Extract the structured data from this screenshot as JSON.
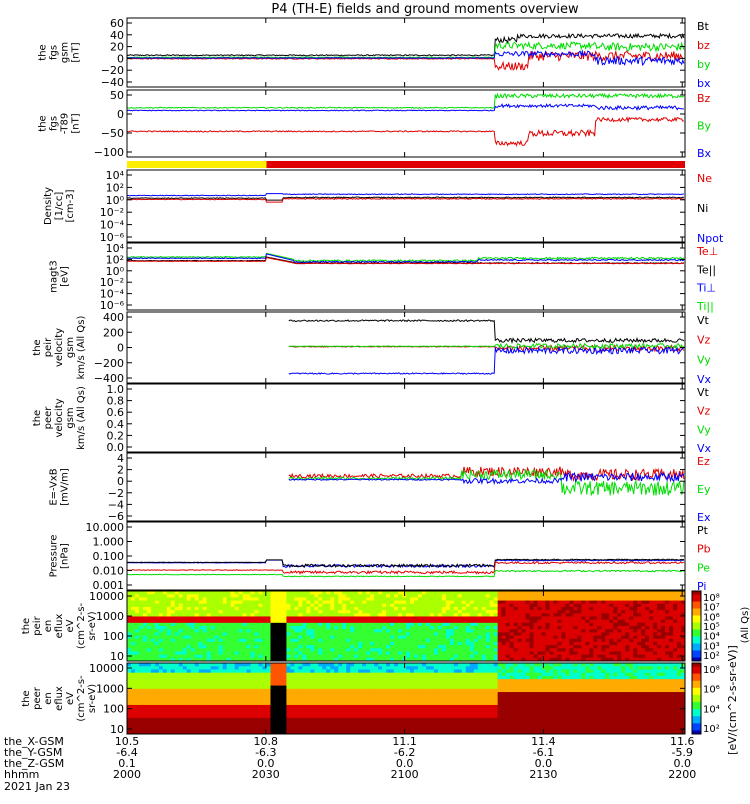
{
  "title": "P4 (TH-E) fields and ground moments overview",
  "colors": {
    "black": "#000000",
    "red": "#e00000",
    "green": "#00dd00",
    "blue": "#0000ff",
    "yellow": "#ffee00"
  },
  "x_axis": {
    "rows": [
      {
        "label": "the_X-GSM",
        "values": [
          "10.5",
          "10.8",
          "11.1",
          "11.4",
          "11.6"
        ]
      },
      {
        "label": "the_Y-GSM",
        "values": [
          "-6.4",
          "-6.3",
          "-6.2",
          "-6.1",
          "-5.9"
        ]
      },
      {
        "label": "the_Z-GSM",
        "values": [
          "0.1",
          "0.0",
          "0.0",
          "0.0",
          "0.0"
        ]
      },
      {
        "label": "hhmm",
        "values": [
          "2000",
          "2030",
          "2100",
          "2130",
          "2200"
        ]
      }
    ],
    "date": "2021 Jan 23"
  },
  "colorbar": {
    "ticks": [
      "10⁸",
      "10⁷",
      "10⁶",
      "10⁵",
      "10⁴",
      "10³",
      "10²"
    ],
    "ticks2": [
      "10⁸",
      "10⁶",
      "10⁴",
      "10²"
    ],
    "label": "[eV/(cm^2-s-sr-eV)]",
    "label2": "(All Qs)"
  },
  "chart_data": [
    {
      "type": "line",
      "panel": "fgs",
      "ylabel": [
        "the",
        "fgs",
        "gsm",
        "[nT]"
      ],
      "ylim": [
        -40,
        60
      ],
      "ticks": [
        "60",
        "40",
        "20",
        "0",
        "−20",
        "−40"
      ],
      "series": [
        {
          "name": "Bt",
          "color": "black"
        },
        {
          "name": "bz",
          "color": "red"
        },
        {
          "name": "by",
          "color": "green"
        },
        {
          "name": "bx",
          "color": "blue"
        }
      ]
    },
    {
      "type": "line",
      "panel": "fgs-dev",
      "ylabel": [
        "the",
        "fgs",
        "-T89",
        "[nT]"
      ],
      "ylim": [
        -120,
        50
      ],
      "ticks": [
        "50",
        "0",
        "−50",
        "−100"
      ],
      "series": [
        {
          "name": "Bz",
          "color": "red"
        },
        {
          "name": "By",
          "color": "green"
        },
        {
          "name": "Bx",
          "color": "blue"
        }
      ]
    },
    {
      "type": "line",
      "panel": "density",
      "ylabel": [
        "Density",
        "[1/cc]",
        "[cm-3]"
      ],
      "scale": "log",
      "ticks": [
        "10⁴",
        "10²",
        "10⁰",
        "10⁻²",
        "10⁻⁴",
        "10⁻⁶"
      ],
      "series": [
        {
          "name": "Ne",
          "color": "red"
        },
        {
          "name": "Ni",
          "color": "black"
        },
        {
          "name": "Npot",
          "color": "blue"
        }
      ]
    },
    {
      "type": "line",
      "panel": "temperature",
      "ylabel": [
        "magt3",
        "[eV]"
      ],
      "scale": "log",
      "ticks": [
        "10⁴",
        "10²",
        "10⁰",
        "10⁻²",
        "10⁻⁴",
        "10⁻⁶"
      ],
      "series": [
        {
          "name": "Te⊥",
          "color": "red"
        },
        {
          "name": "Te||",
          "color": "black"
        },
        {
          "name": "Ti⊥",
          "color": "blue"
        },
        {
          "name": "Ti||",
          "color": "green"
        }
      ]
    },
    {
      "type": "line",
      "panel": "peir-velocity",
      "ylabel": [
        "the",
        "peir",
        "velocity",
        "gsm",
        "km/s (All Qs)"
      ],
      "ylim": [
        -400,
        400
      ],
      "ticks": [
        "400",
        "200",
        "0",
        "−200",
        "−400"
      ],
      "series": [
        {
          "name": "Vt",
          "color": "black"
        },
        {
          "name": "Vz",
          "color": "red"
        },
        {
          "name": "Vy",
          "color": "green"
        },
        {
          "name": "Vx",
          "color": "blue"
        }
      ]
    },
    {
      "type": "line",
      "panel": "peer-velocity",
      "ylabel": [
        "the",
        "peer",
        "velocity",
        "gsm",
        "km/s (All Qs)"
      ],
      "ylim": [
        0,
        1
      ],
      "ticks": [
        "1.0",
        "0.8",
        "0.6",
        "0.4",
        "0.2",
        "0.0"
      ],
      "series": [
        {
          "name": "Vt",
          "color": "black"
        },
        {
          "name": "Vz",
          "color": "red"
        },
        {
          "name": "Vy",
          "color": "green"
        },
        {
          "name": "Vx",
          "color": "blue"
        }
      ]
    },
    {
      "type": "line",
      "panel": "efield",
      "ylabel": [
        "E=-VxB",
        "[mV/m]"
      ],
      "ylim": [
        -6,
        4
      ],
      "ticks": [
        "4",
        "2",
        "0",
        "−2",
        "−4",
        "−6"
      ],
      "series": [
        {
          "name": "Ez",
          "color": "red"
        },
        {
          "name": "Ey",
          "color": "green"
        },
        {
          "name": "Ex",
          "color": "blue"
        }
      ]
    },
    {
      "type": "line",
      "panel": "pressure",
      "ylabel": [
        "Pressure",
        "[nPa]"
      ],
      "scale": "log",
      "ticks": [
        "10.000",
        "1.000",
        "0.100",
        "0.010",
        "0.001"
      ],
      "series": [
        {
          "name": "Pt",
          "color": "black"
        },
        {
          "name": "Pb",
          "color": "red"
        },
        {
          "name": "Pe",
          "color": "green"
        },
        {
          "name": "Pi",
          "color": "blue"
        }
      ]
    },
    {
      "type": "heatmap",
      "panel": "peir-spectrogram",
      "ylabel": [
        "the",
        "peir",
        "en",
        "eflux",
        "eV",
        "(cm^2-s-",
        "sr-eV)"
      ],
      "ticks": [
        "10000",
        "1000",
        "100",
        "10"
      ]
    },
    {
      "type": "heatmap",
      "panel": "peer-spectrogram",
      "ylabel": [
        "the",
        "peer",
        "en",
        "eflux",
        "eV",
        "(cm^2-s-",
        "sr-eV)"
      ],
      "ticks": [
        "10000",
        "1000",
        "100",
        "10"
      ]
    }
  ]
}
